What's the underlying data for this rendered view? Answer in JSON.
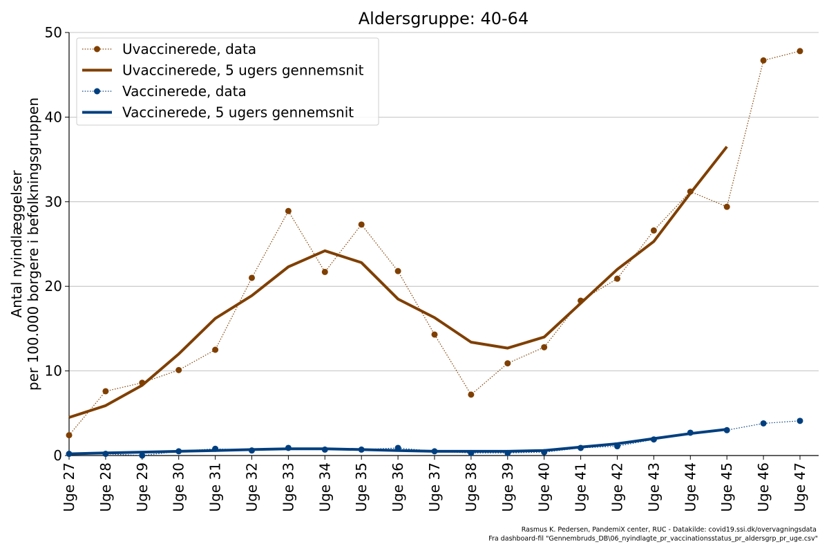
{
  "chart_data": {
    "type": "line",
    "title": "Aldersgruppe: 40-64",
    "ylabel_line1": "Antal nyindlæggelser",
    "ylabel_line2": "per 100.000 borgere i befolkningsgruppen",
    "categories": [
      "Uge 27",
      "Uge 28",
      "Uge 29",
      "Uge 30",
      "Uge 31",
      "Uge 32",
      "Uge 33",
      "Uge 34",
      "Uge 35",
      "Uge 36",
      "Uge 37",
      "Uge 38",
      "Uge 39",
      "Uge 40",
      "Uge 41",
      "Uge 42",
      "Uge 43",
      "Uge 44",
      "Uge 45",
      "Uge 46",
      "Uge 47"
    ],
    "ylim": [
      0,
      50
    ],
    "yticks": [
      0,
      10,
      20,
      30,
      40,
      50
    ],
    "grid": "horizontal",
    "legend_position": "top-left",
    "series": [
      {
        "name": "Uvaccinerede, data",
        "style": "dotted-markers",
        "color": "#7f3f00",
        "values": [
          2.4,
          7.6,
          8.6,
          10.1,
          12.5,
          21.0,
          28.9,
          21.7,
          27.3,
          21.8,
          14.3,
          7.2,
          10.9,
          12.8,
          18.3,
          20.9,
          26.6,
          31.2,
          29.4,
          46.7,
          47.8
        ]
      },
      {
        "name": "Uvaccinerede, 5 ugers gennemsnit",
        "style": "thick-line",
        "color": "#7f3f00",
        "values": [
          4.5,
          5.9,
          8.3,
          12.0,
          16.2,
          18.9,
          22.3,
          24.2,
          22.8,
          18.5,
          16.3,
          13.4,
          12.7,
          14.0,
          18.0,
          22.0,
          25.3,
          31.0,
          36.5,
          null,
          null
        ]
      },
      {
        "name": "Vaccinerede, data",
        "style": "dotted-markers",
        "color": "#003f7f",
        "values": [
          0.2,
          0.2,
          0.0,
          0.5,
          0.8,
          0.6,
          0.9,
          0.7,
          0.7,
          0.9,
          0.5,
          0.3,
          0.3,
          0.4,
          0.9,
          1.1,
          1.9,
          2.7,
          3.0,
          3.8,
          4.1
        ]
      },
      {
        "name": "Vaccinerede, 5 ugers gennemsnit",
        "style": "thick-line",
        "color": "#003f7f",
        "values": [
          0.2,
          0.3,
          0.4,
          0.5,
          0.6,
          0.7,
          0.8,
          0.8,
          0.7,
          0.6,
          0.5,
          0.5,
          0.5,
          0.6,
          1.0,
          1.4,
          2.0,
          2.6,
          3.1,
          null,
          null
        ]
      }
    ]
  },
  "credits": {
    "line1": "Rasmus K. Pedersen, PandemiX center, RUC - Datakilde: covid19.ssi.dk/overvagningsdata",
    "line2": "Fra dashboard-fil \"Gennembruds_DB\\06_nyindlagte_pr_vaccinationsstatus_pr_aldersgrp_pr_uge.csv\""
  }
}
